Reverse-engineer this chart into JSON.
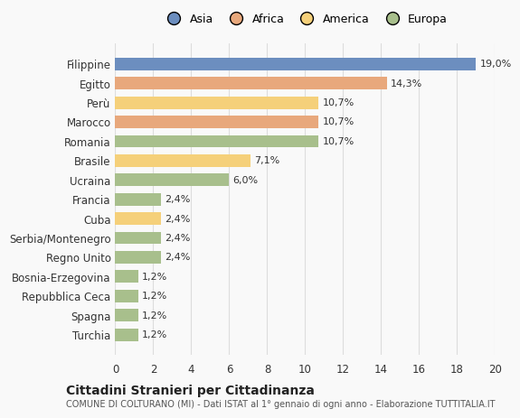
{
  "countries": [
    "Filippine",
    "Egitto",
    "Perù",
    "Marocco",
    "Romania",
    "Brasile",
    "Ucraina",
    "Francia",
    "Cuba",
    "Serbia/Montenegro",
    "Regno Unito",
    "Bosnia-Erzegovina",
    "Repubblica Ceca",
    "Spagna",
    "Turchia"
  ],
  "values": [
    19.0,
    14.3,
    10.7,
    10.7,
    10.7,
    7.1,
    6.0,
    2.4,
    2.4,
    2.4,
    2.4,
    1.2,
    1.2,
    1.2,
    1.2
  ],
  "labels": [
    "19,0%",
    "14,3%",
    "10,7%",
    "10,7%",
    "10,7%",
    "7,1%",
    "6,0%",
    "2,4%",
    "2,4%",
    "2,4%",
    "2,4%",
    "1,2%",
    "1,2%",
    "1,2%",
    "1,2%"
  ],
  "colors": [
    "#6c8ebf",
    "#e8a87c",
    "#f5d07a",
    "#e8a87c",
    "#a8bf8c",
    "#f5d07a",
    "#a8bf8c",
    "#a8bf8c",
    "#f5d07a",
    "#a8bf8c",
    "#a8bf8c",
    "#a8bf8c",
    "#a8bf8c",
    "#a8bf8c",
    "#a8bf8c"
  ],
  "categories": [
    "Asia",
    "Africa",
    "America",
    "Europa"
  ],
  "legend_colors": [
    "#6c8ebf",
    "#e8a87c",
    "#f5d07a",
    "#a8bf8c"
  ],
  "title": "Cittadini Stranieri per Cittadinanza",
  "subtitle": "COMUNE DI COLTURANO (MI) - Dati ISTAT al 1° gennaio di ogni anno - Elaborazione TUTTITALIA.IT",
  "xlim": [
    0,
    20
  ],
  "xticks": [
    0,
    2,
    4,
    6,
    8,
    10,
    12,
    14,
    16,
    18,
    20
  ],
  "bg_color": "#f9f9f9",
  "grid_color": "#dddddd"
}
